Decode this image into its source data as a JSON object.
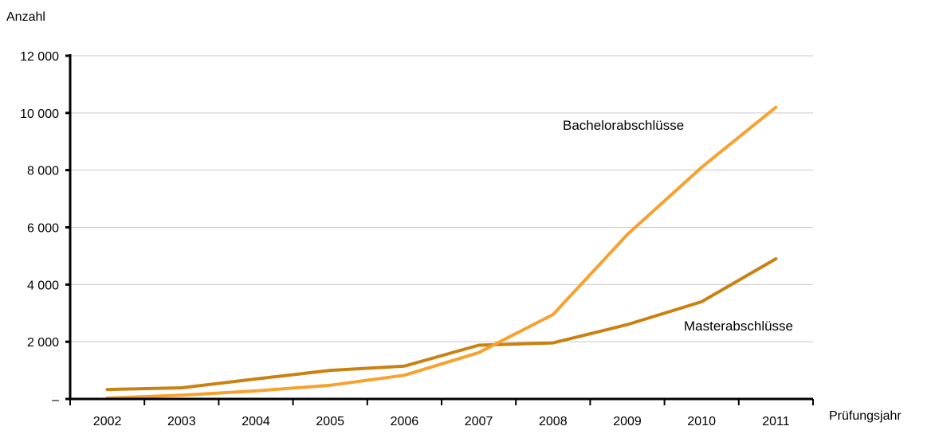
{
  "chart_data": {
    "type": "line",
    "ylabel": "Anzahl",
    "xlabel": "Prüfungsjahr",
    "x": [
      "2002",
      "2003",
      "2004",
      "2005",
      "2006",
      "2007",
      "2008",
      "2009",
      "2010",
      "2011"
    ],
    "ylim": [
      0,
      12000
    ],
    "yticks": [
      0,
      2000,
      4000,
      6000,
      8000,
      10000,
      12000
    ],
    "ytick_labels": [
      "–",
      "2 000",
      "4 000",
      "6 000",
      "8 000",
      "10 000",
      "12 000"
    ],
    "grid": "horizontal",
    "series": [
      {
        "name": "Bachelorabschlüsse",
        "color": "#F7A12F",
        "values": [
          30,
          130,
          280,
          480,
          830,
          1620,
          2950,
          5750,
          8100,
          10200
        ]
      },
      {
        "name": "Masterabschlüsse",
        "color": "#C98211",
        "values": [
          330,
          390,
          700,
          1000,
          1150,
          1880,
          1960,
          2600,
          3400,
          4900
        ]
      }
    ]
  }
}
